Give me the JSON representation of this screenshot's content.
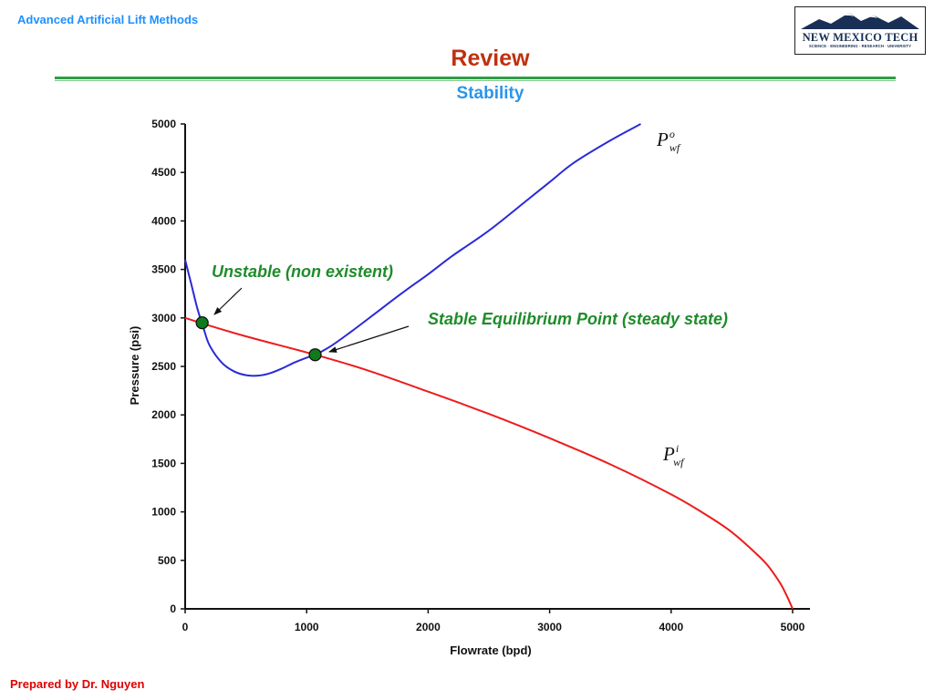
{
  "header": {
    "course_title": "Advanced Artificial Lift Methods",
    "logo_name": "NEW MEXICO TECH",
    "logo_tagline": "SCIENCE · ENGINEERING · RESEARCH · UNIVERSITY"
  },
  "slide": {
    "title": "Review",
    "subtitle": "Stability"
  },
  "footer": {
    "author": "Prepared by Dr. Nguyen"
  },
  "colors": {
    "outflow_curve": "#2a2ad8",
    "inflow_curve": "#ee1c1c",
    "points": "#0f7a1a",
    "annotations": "#1f8c2a"
  },
  "chart_data": {
    "type": "line",
    "xlabel": "Flowrate (bpd)",
    "ylabel": "Pressure (psi)",
    "xlim": [
      0,
      5000
    ],
    "ylim": [
      0,
      5000
    ],
    "x_ticks": [
      0,
      1000,
      2000,
      3000,
      4000,
      5000
    ],
    "y_ticks": [
      0,
      500,
      1000,
      1500,
      2000,
      2500,
      3000,
      3500,
      4000,
      4500,
      5000
    ],
    "grid": false,
    "series": [
      {
        "name": "P",
        "sub": "wf",
        "sup": "o",
        "color_key": "outflow_curve",
        "x": [
          0,
          50,
          100,
          150,
          200,
          300,
          400,
          500,
          600,
          700,
          800,
          900,
          1000,
          1070,
          1200,
          1400,
          1600,
          1800,
          2000,
          2200,
          2500,
          2800,
          3000,
          3200,
          3500,
          3750
        ],
        "y": [
          3600,
          3350,
          3100,
          2900,
          2720,
          2540,
          2450,
          2410,
          2405,
          2430,
          2480,
          2540,
          2590,
          2620,
          2710,
          2890,
          3080,
          3270,
          3450,
          3640,
          3900,
          4200,
          4400,
          4600,
          4830,
          5000
        ]
      },
      {
        "name": "P",
        "sub": "wf",
        "sup": "i",
        "color_key": "inflow_curve",
        "x": [
          0,
          150,
          500,
          1070,
          1500,
          2000,
          2500,
          3000,
          3500,
          4000,
          4300,
          4500,
          4700,
          4800,
          4900,
          4950,
          5000
        ],
        "y": [
          3000,
          2940,
          2810,
          2620,
          2460,
          2240,
          2010,
          1760,
          1490,
          1180,
          960,
          790,
          570,
          440,
          260,
          140,
          0
        ]
      }
    ],
    "points": [
      {
        "x": 140,
        "y": 2950,
        "label": "Unstable (non existent)"
      },
      {
        "x": 1070,
        "y": 2620,
        "label": "Stable Equilibrium Point (steady state)"
      }
    ]
  }
}
